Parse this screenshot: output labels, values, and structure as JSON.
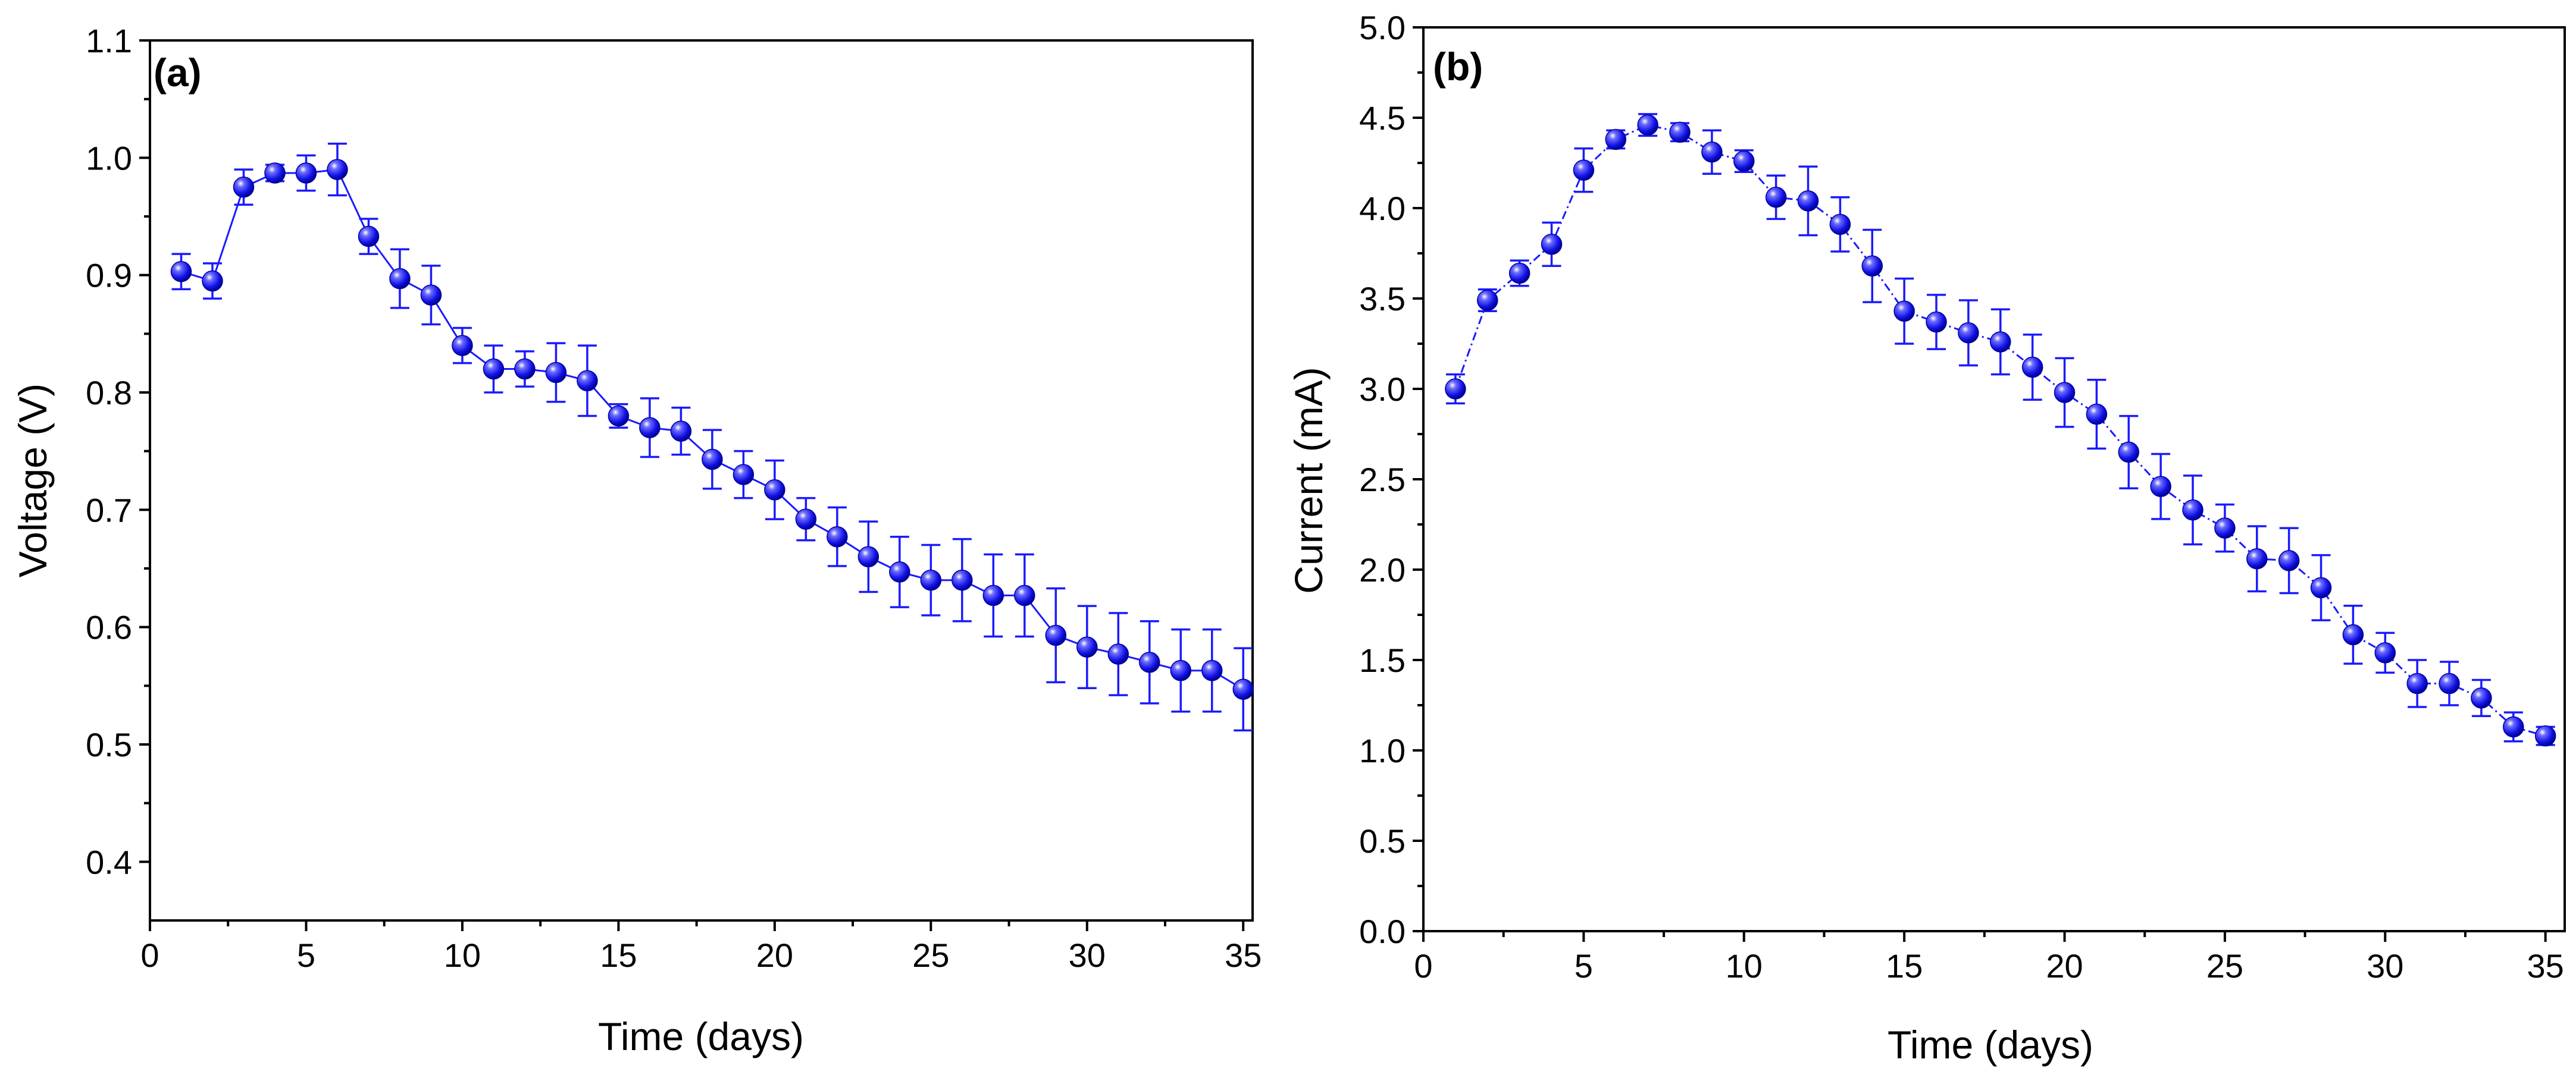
{
  "chart_data": [
    {
      "type": "scatter",
      "panel_label": "(a)",
      "xlabel": "Time (days)",
      "ylabel": "Voltage (V)",
      "xlim": [
        0,
        35.3
      ],
      "ylim": [
        0.35,
        1.1
      ],
      "xticks": [
        0,
        5,
        10,
        15,
        20,
        25,
        30,
        35
      ],
      "xtick_labels": [
        "0",
        "5",
        "10",
        "15",
        "20",
        "25",
        "30",
        "35"
      ],
      "yticks": [
        0.4,
        0.5,
        0.6,
        0.7,
        0.8,
        0.9,
        1.0,
        1.1
      ],
      "ytick_labels": [
        "0.4",
        "0.5",
        "0.6",
        "0.7",
        "0.8",
        "0.9",
        "1.0",
        "1.1"
      ],
      "grid": false,
      "line_style": "solid",
      "series": [
        {
          "name": "Voltage",
          "color": "#1a1aff",
          "x": [
            1,
            2,
            3,
            4,
            5,
            6,
            7,
            8,
            9,
            10,
            11,
            12,
            13,
            14,
            15,
            16,
            17,
            18,
            19,
            20,
            21,
            22,
            23,
            24,
            25,
            26,
            27,
            28,
            29,
            30,
            31,
            32,
            33,
            34,
            35
          ],
          "y": [
            0.903,
            0.895,
            0.975,
            0.987,
            0.987,
            0.99,
            0.933,
            0.897,
            0.883,
            0.84,
            0.82,
            0.82,
            0.817,
            0.81,
            0.78,
            0.77,
            0.767,
            0.743,
            0.73,
            0.717,
            0.692,
            0.677,
            0.66,
            0.647,
            0.64,
            0.64,
            0.627,
            0.627,
            0.593,
            0.583,
            0.577,
            0.57,
            0.563,
            0.563,
            0.547
          ],
          "err": [
            0.015,
            0.015,
            0.015,
            0.007,
            0.015,
            0.022,
            0.015,
            0.025,
            0.025,
            0.015,
            0.02,
            0.015,
            0.025,
            0.03,
            0.01,
            0.025,
            0.02,
            0.025,
            0.02,
            0.025,
            0.018,
            0.025,
            0.03,
            0.03,
            0.03,
            0.035,
            0.035,
            0.035,
            0.04,
            0.035,
            0.035,
            0.035,
            0.035,
            0.035,
            0.035
          ]
        }
      ]
    },
    {
      "type": "scatter",
      "panel_label": "(b)",
      "xlabel": "Time (days)",
      "ylabel": "Current (mA)",
      "xlim": [
        0,
        35.6
      ],
      "ylim": [
        0.0,
        5.0
      ],
      "xticks": [
        0,
        5,
        10,
        15,
        20,
        25,
        30,
        35
      ],
      "xtick_labels": [
        "0",
        "5",
        "10",
        "15",
        "20",
        "25",
        "30",
        "35"
      ],
      "yticks": [
        0.0,
        0.5,
        1.0,
        1.5,
        2.0,
        2.5,
        3.0,
        3.5,
        4.0,
        4.5,
        5.0
      ],
      "ytick_labels": [
        "0.0",
        "0.5",
        "1.0",
        "1.5",
        "2.0",
        "2.5",
        "3.0",
        "3.5",
        "4.0",
        "4.5",
        "5.0"
      ],
      "grid": false,
      "line_style": "dash-dot",
      "series": [
        {
          "name": "Current",
          "color": "#1a1aff",
          "x": [
            1,
            2,
            3,
            4,
            5,
            6,
            7,
            8,
            9,
            10,
            11,
            12,
            13,
            14,
            15,
            16,
            17,
            18,
            19,
            20,
            21,
            22,
            23,
            24,
            25,
            26,
            27,
            28,
            29,
            30,
            31,
            32,
            33,
            34,
            35
          ],
          "y": [
            3.0,
            3.49,
            3.64,
            3.8,
            4.21,
            4.38,
            4.46,
            4.42,
            4.31,
            4.26,
            4.06,
            4.04,
            3.91,
            3.68,
            3.43,
            3.37,
            3.31,
            3.26,
            3.12,
            2.98,
            2.86,
            2.65,
            2.46,
            2.33,
            2.23,
            2.06,
            2.05,
            1.9,
            1.64,
            1.54,
            1.37,
            1.37,
            1.29,
            1.13,
            1.08
          ],
          "err": [
            0.08,
            0.06,
            0.07,
            0.12,
            0.12,
            0.05,
            0.06,
            0.05,
            0.12,
            0.06,
            0.12,
            0.19,
            0.15,
            0.2,
            0.18,
            0.15,
            0.18,
            0.18,
            0.18,
            0.19,
            0.19,
            0.2,
            0.18,
            0.19,
            0.13,
            0.18,
            0.18,
            0.18,
            0.16,
            0.11,
            0.13,
            0.12,
            0.1,
            0.08,
            0.05
          ]
        }
      ]
    }
  ]
}
